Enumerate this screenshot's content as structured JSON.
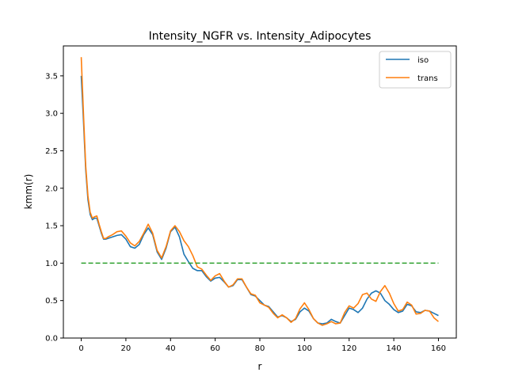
{
  "chart_data": {
    "type": "line",
    "title": "Intensity_NGFR vs. Intensity_Adipocytes",
    "xlabel": "r",
    "ylabel": "kmm(r)",
    "xlim": [
      -8,
      168
    ],
    "ylim": [
      0.0,
      3.9
    ],
    "xticks": [
      0,
      20,
      40,
      60,
      80,
      100,
      120,
      140,
      160
    ],
    "yticks": [
      0.0,
      0.5,
      1.0,
      1.5,
      2.0,
      2.5,
      3.0,
      3.5
    ],
    "xtick_labels": [
      "0",
      "20",
      "40",
      "60",
      "80",
      "100",
      "120",
      "140",
      "160"
    ],
    "ytick_labels": [
      "0.0",
      "0.5",
      "1.0",
      "1.5",
      "2.0",
      "2.5",
      "3.0",
      "3.5"
    ],
    "grid": false,
    "legend_position": "top-right",
    "series": [
      {
        "name": "iso",
        "color": "#1f77b4",
        "style": "solid",
        "x": [
          0,
          1,
          2,
          3,
          4,
          5,
          6,
          7,
          8,
          9,
          10,
          11,
          12,
          14,
          16,
          18,
          20,
          22,
          24,
          26,
          28,
          30,
          32,
          34,
          36,
          38,
          40,
          42,
          44,
          46,
          48,
          50,
          52,
          54,
          56,
          58,
          60,
          62,
          64,
          66,
          68,
          70,
          72,
          74,
          76,
          78,
          80,
          82,
          84,
          86,
          88,
          90,
          92,
          94,
          96,
          98,
          100,
          102,
          104,
          106,
          108,
          110,
          112,
          114,
          116,
          118,
          120,
          122,
          124,
          126,
          128,
          130,
          132,
          134,
          136,
          138,
          140,
          142,
          144,
          146,
          148,
          150,
          152,
          154,
          156,
          158,
          160
        ],
        "y": [
          3.5,
          2.9,
          2.25,
          1.85,
          1.65,
          1.58,
          1.6,
          1.6,
          1.5,
          1.4,
          1.32,
          1.32,
          1.33,
          1.35,
          1.37,
          1.38,
          1.32,
          1.22,
          1.2,
          1.25,
          1.38,
          1.47,
          1.38,
          1.15,
          1.05,
          1.2,
          1.42,
          1.48,
          1.35,
          1.12,
          1.02,
          0.93,
          0.9,
          0.9,
          0.82,
          0.76,
          0.8,
          0.81,
          0.75,
          0.68,
          0.7,
          0.78,
          0.78,
          0.68,
          0.58,
          0.56,
          0.5,
          0.44,
          0.42,
          0.35,
          0.28,
          0.3,
          0.27,
          0.22,
          0.25,
          0.35,
          0.4,
          0.36,
          0.26,
          0.2,
          0.19,
          0.2,
          0.25,
          0.22,
          0.2,
          0.3,
          0.4,
          0.38,
          0.34,
          0.4,
          0.52,
          0.6,
          0.63,
          0.6,
          0.5,
          0.45,
          0.38,
          0.34,
          0.36,
          0.45,
          0.43,
          0.35,
          0.34,
          0.37,
          0.36,
          0.33,
          0.3
        ]
      },
      {
        "name": "trans",
        "color": "#ff7f0e",
        "style": "solid",
        "x": [
          0,
          1,
          2,
          3,
          4,
          5,
          6,
          7,
          8,
          9,
          10,
          11,
          12,
          14,
          16,
          18,
          20,
          22,
          24,
          26,
          28,
          30,
          32,
          34,
          36,
          38,
          40,
          42,
          44,
          46,
          48,
          50,
          52,
          54,
          56,
          58,
          60,
          62,
          64,
          66,
          68,
          70,
          72,
          74,
          76,
          78,
          80,
          82,
          84,
          86,
          88,
          90,
          92,
          94,
          96,
          98,
          100,
          102,
          104,
          106,
          108,
          110,
          112,
          114,
          116,
          118,
          120,
          122,
          124,
          126,
          128,
          130,
          132,
          134,
          136,
          138,
          140,
          142,
          144,
          146,
          148,
          150,
          152,
          154,
          156,
          158,
          160
        ],
        "y": [
          3.75,
          3.0,
          2.3,
          1.9,
          1.68,
          1.6,
          1.62,
          1.63,
          1.52,
          1.42,
          1.33,
          1.33,
          1.35,
          1.38,
          1.42,
          1.43,
          1.36,
          1.27,
          1.23,
          1.29,
          1.4,
          1.52,
          1.4,
          1.17,
          1.07,
          1.22,
          1.43,
          1.5,
          1.42,
          1.3,
          1.22,
          1.1,
          0.95,
          0.92,
          0.84,
          0.77,
          0.83,
          0.86,
          0.76,
          0.68,
          0.71,
          0.79,
          0.79,
          0.68,
          0.59,
          0.57,
          0.47,
          0.44,
          0.41,
          0.33,
          0.27,
          0.31,
          0.27,
          0.21,
          0.26,
          0.39,
          0.47,
          0.38,
          0.26,
          0.2,
          0.17,
          0.19,
          0.22,
          0.19,
          0.2,
          0.34,
          0.43,
          0.4,
          0.46,
          0.58,
          0.6,
          0.52,
          0.49,
          0.62,
          0.7,
          0.6,
          0.46,
          0.36,
          0.38,
          0.48,
          0.44,
          0.32,
          0.33,
          0.37,
          0.36,
          0.27,
          0.22
        ]
      },
      {
        "color": "#2ca02c",
        "style": "dashed",
        "x": [
          0,
          160
        ],
        "y": [
          1.0,
          1.0
        ]
      }
    ]
  }
}
